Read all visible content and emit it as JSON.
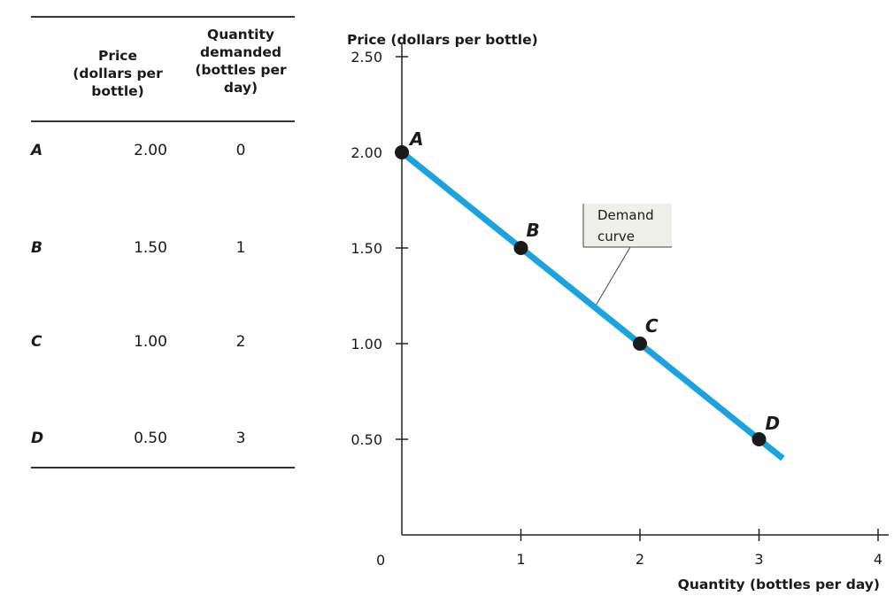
{
  "table": {
    "headers": {
      "price": "Price\n(dollars per\nbottle)",
      "quantity": "Quantity\ndemanded\n(bottles per\nday)"
    },
    "rows": [
      {
        "label": "A",
        "price": "2.00",
        "quantity": "0"
      },
      {
        "label": "B",
        "price": "1.50",
        "quantity": "1"
      },
      {
        "label": "C",
        "price": "1.00",
        "quantity": "2"
      },
      {
        "label": "D",
        "price": "0.50",
        "quantity": "3"
      }
    ]
  },
  "chart_data": {
    "type": "line",
    "title": "",
    "xlabel": "Quantity (bottles per day)",
    "ylabel": "Price (dollars per bottle)",
    "xlim": [
      0,
      4
    ],
    "ylim": [
      0,
      2.5
    ],
    "x_ticks": [
      1,
      2,
      3,
      4
    ],
    "x_tick_labels": [
      "1",
      "2",
      "3",
      "4"
    ],
    "y_ticks": [
      0.5,
      1.0,
      1.5,
      2.0,
      2.5
    ],
    "y_tick_labels": [
      "0.50",
      "1.00",
      "1.50",
      "2.00",
      "2.50"
    ],
    "origin_label": "0",
    "grid": false,
    "line_color": "#1aa3dc",
    "line_end": {
      "x": 3.2,
      "y": 0.4
    },
    "series": [
      {
        "name": "Demand curve",
        "points": [
          {
            "label": "A",
            "x": 0,
            "y": 2.0
          },
          {
            "label": "B",
            "x": 1,
            "y": 1.5
          },
          {
            "label": "C",
            "x": 2,
            "y": 1.0
          },
          {
            "label": "D",
            "x": 3,
            "y": 0.5
          }
        ]
      }
    ],
    "annotations": [
      {
        "text_lines": [
          "Demand",
          "curve"
        ],
        "points_to": {
          "x": 1.62,
          "y": 1.19
        }
      }
    ]
  }
}
